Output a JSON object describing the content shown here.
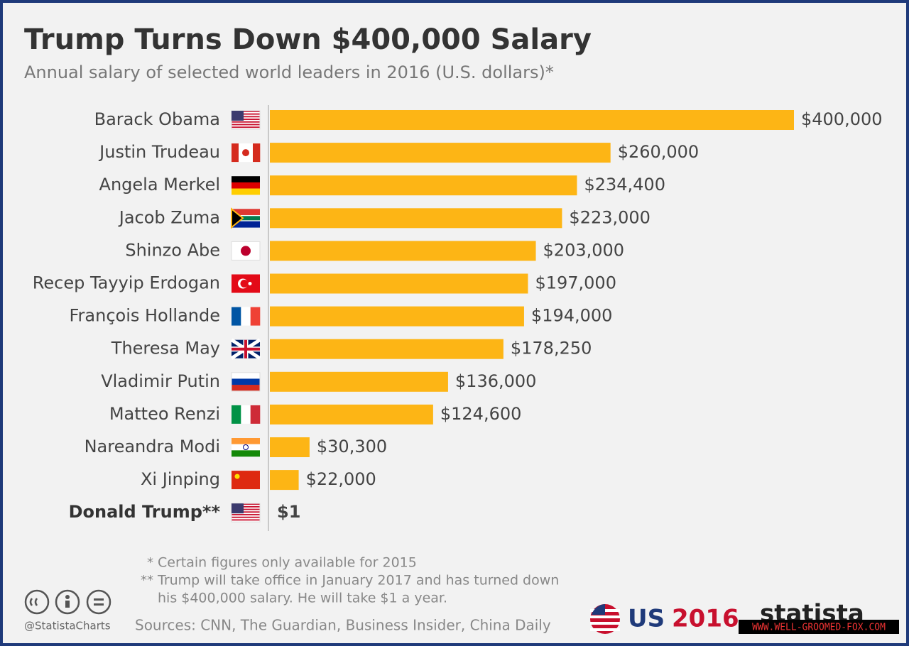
{
  "chart_data": {
    "type": "bar",
    "orientation": "horizontal",
    "title": "Trump Turns Down $400,000 Salary",
    "subtitle": "Annual salary of selected world leaders in 2016 (U.S. dollars)*",
    "categories": [
      "Barack Obama",
      "Justin Trudeau",
      "Angela Merkel",
      "Jacob Zuma",
      "Shinzo Abe",
      "Recep Tayyip Erdogan",
      "François Hollande",
      "Theresa May",
      "Vladimir Putin",
      "Matteo Renzi",
      "Nareandra Modi",
      "Xi Jinping",
      "Donald Trump**"
    ],
    "values": [
      400000,
      260000,
      234400,
      223000,
      203000,
      197000,
      194000,
      178250,
      136000,
      124600,
      30300,
      22000,
      1
    ],
    "value_labels": [
      "$400,000",
      "$260,000",
      "$234,400",
      "$223,000",
      "$203,000",
      "$197,000",
      "$194,000",
      "$178,250",
      "$136,000",
      "$124,600",
      "$30,300",
      "$22,000",
      "$1"
    ],
    "color": "#fdb515",
    "highlight_index": 12,
    "notes": [
      {
        "marker": "*",
        "lines": [
          "Certain figures only available for 2015"
        ]
      },
      {
        "marker": "**",
        "lines": [
          "Trump will take office in January 2017 and has turned down",
          "his $400,000 salary. He will take $1 a year."
        ]
      }
    ],
    "source": "Sources: CNN, The Guardian, Business Insider, China Daily",
    "credit": "@StatistaCharts",
    "badge": {
      "country": "US",
      "year": "2016"
    },
    "brand": "statista",
    "watermark": "WWW.WELL-GROOMED-FOX.COM"
  }
}
